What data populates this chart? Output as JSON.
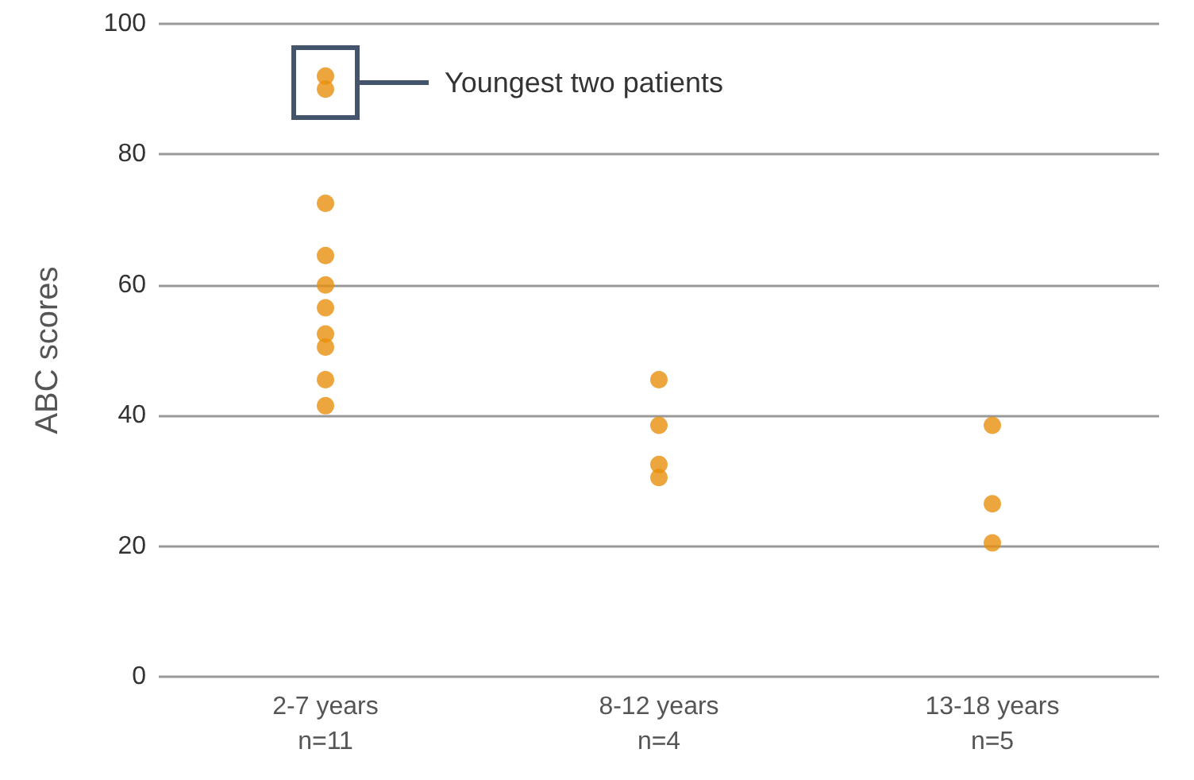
{
  "chart_data": {
    "type": "scatter",
    "ylabel": "ABC scores",
    "categories": [
      "2-7 years\nn=11",
      "8-12 years\nn=4",
      "13-18 years\nn=5"
    ],
    "series": [
      {
        "color": "#e8900c",
        "x": [
          "2-7 years\nn=11",
          "2-7 years\nn=11",
          "2-7 years\nn=11",
          "2-7 years\nn=11",
          "2-7 years\nn=11",
          "2-7 years\nn=11",
          "2-7 years\nn=11",
          "2-7 years\nn=11",
          "2-7 years\nn=11",
          "2-7 years\nn=11",
          "8-12 years\nn=4",
          "8-12 years\nn=4",
          "8-12 years\nn=4",
          "8-12 years\nn=4",
          "13-18 years\nn=5",
          "13-18 years\nn=5",
          "13-18 years\nn=5"
        ],
        "values": [
          92,
          90,
          72.5,
          64.5,
          60,
          56.5,
          52.5,
          50.5,
          45.5,
          41.5,
          45.5,
          38.5,
          32.5,
          30.5,
          38.5,
          26.5,
          20.5
        ]
      }
    ],
    "ylim": [
      0,
      100
    ],
    "yticks": [
      0,
      20,
      40,
      60,
      80,
      100
    ],
    "grid": "y",
    "marker": "circle",
    "annotations": [
      "Youngest two patients"
    ]
  }
}
